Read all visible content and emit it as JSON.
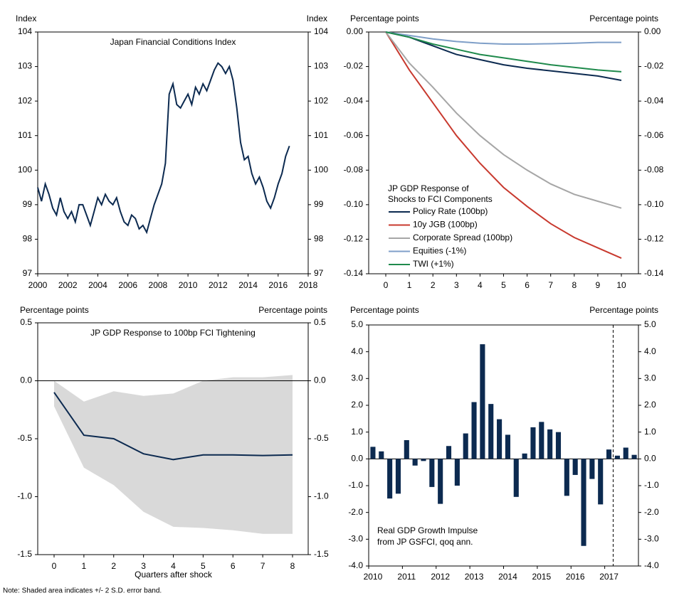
{
  "chart_data": [
    {
      "type": "line",
      "title": "Japan Financial Conditions Index",
      "ylabel_left": "Index",
      "ylabel_right": "Index",
      "x": [
        2000,
        2000.25,
        2000.5,
        2000.75,
        2001,
        2001.25,
        2001.5,
        2001.75,
        2002,
        2002.25,
        2002.5,
        2002.75,
        2003,
        2003.25,
        2003.5,
        2003.75,
        2004,
        2004.25,
        2004.5,
        2004.75,
        2005,
        2005.25,
        2005.5,
        2005.75,
        2006,
        2006.25,
        2006.5,
        2006.75,
        2007,
        2007.25,
        2007.5,
        2007.75,
        2008,
        2008.25,
        2008.5,
        2008.75,
        2009,
        2009.25,
        2009.5,
        2009.75,
        2010,
        2010.25,
        2010.5,
        2010.75,
        2011,
        2011.25,
        2011.5,
        2011.75,
        2012,
        2012.25,
        2012.5,
        2012.75,
        2013,
        2013.25,
        2013.5,
        2013.75,
        2014,
        2014.25,
        2014.5,
        2014.75,
        2015,
        2015.25,
        2015.5,
        2015.75,
        2016,
        2016.25,
        2016.5,
        2016.75
      ],
      "values": [
        99.5,
        99.1,
        99.6,
        99.3,
        98.9,
        98.7,
        99.2,
        98.8,
        98.6,
        98.8,
        98.5,
        99.0,
        99.0,
        98.7,
        98.4,
        98.8,
        99.2,
        99.0,
        99.3,
        99.1,
        99.0,
        99.2,
        98.8,
        98.5,
        98.4,
        98.7,
        98.6,
        98.3,
        98.4,
        98.2,
        98.6,
        99.0,
        99.3,
        99.6,
        100.2,
        102.2,
        102.5,
        101.9,
        101.8,
        102.0,
        102.2,
        101.9,
        102.4,
        102.2,
        102.5,
        102.3,
        102.6,
        102.9,
        103.1,
        103.0,
        102.8,
        103.0,
        102.6,
        101.8,
        100.8,
        100.3,
        100.4,
        99.9,
        99.6,
        99.8,
        99.5,
        99.1,
        98.9,
        99.2,
        99.6,
        99.9,
        100.4,
        100.7
      ],
      "color": "#0c2a50",
      "xlim": [
        2000,
        2018
      ],
      "xticks": [
        2000,
        2002,
        2004,
        2006,
        2008,
        2010,
        2012,
        2014,
        2016,
        2018
      ],
      "ylim": [
        97,
        104
      ],
      "yticks": [
        97,
        98,
        99,
        100,
        101,
        102,
        103,
        104
      ],
      "y2lim": [
        97,
        104
      ],
      "y2ticks": [
        97,
        98,
        99,
        100,
        101,
        102,
        103,
        104
      ]
    },
    {
      "type": "line",
      "ylabel_left": "Percentage points",
      "ylabel_right": "Percentage points",
      "legend_title": [
        "JP GDP Response of",
        "Shocks to FCI Components"
      ],
      "categories": [
        0,
        1,
        2,
        3,
        4,
        5,
        6,
        7,
        8,
        9,
        10
      ],
      "series": [
        {
          "name": "Policy Rate (100bp)",
          "color": "#0c2a50",
          "values": [
            0,
            -0.003,
            -0.008,
            -0.013,
            -0.016,
            -0.019,
            -0.021,
            -0.0225,
            -0.024,
            -0.0255,
            -0.028
          ]
        },
        {
          "name": "10y JGB (100bp)",
          "color": "#c8392e",
          "values": [
            0,
            -0.022,
            -0.041,
            -0.06,
            -0.076,
            -0.09,
            -0.101,
            -0.111,
            -0.119,
            -0.125,
            -0.131
          ]
        },
        {
          "name": "Corporate Spread (100bp)",
          "color": "#a6a6a6",
          "values": [
            0,
            -0.018,
            -0.032,
            -0.047,
            -0.06,
            -0.071,
            -0.08,
            -0.088,
            -0.094,
            -0.098,
            -0.102
          ]
        },
        {
          "name": "Equities (-1%)",
          "color": "#7f9fc8",
          "values": [
            0,
            -0.002,
            -0.004,
            -0.0055,
            -0.0065,
            -0.007,
            -0.007,
            -0.0068,
            -0.0065,
            -0.006,
            -0.006
          ]
        },
        {
          "name": "TWI (+1%)",
          "color": "#1f8a4c",
          "values": [
            0,
            -0.003,
            -0.007,
            -0.01,
            -0.013,
            -0.015,
            -0.017,
            -0.019,
            -0.0205,
            -0.022,
            -0.023
          ]
        }
      ],
      "ylim": [
        -0.14,
        0
      ],
      "yticks": [
        {
          "value": -0.14,
          "label": "-0.14"
        },
        {
          "value": -0.12,
          "label": "-0.12"
        },
        {
          "value": -0.1,
          "label": "-0.10"
        },
        {
          "value": -0.08,
          "label": "-0.08"
        },
        {
          "value": -0.06,
          "label": "-0.06"
        },
        {
          "value": -0.04,
          "label": "-0.04"
        },
        {
          "value": -0.02,
          "label": "-0.02"
        },
        {
          "value": 0,
          "label": "0.00"
        }
      ],
      "y2lim": [
        -0.14,
        0
      ],
      "y2ticks": [
        {
          "value": -0.14,
          "label": "-0.14"
        },
        {
          "value": -0.12,
          "label": "-0.12"
        },
        {
          "value": -0.1,
          "label": "-0.10"
        },
        {
          "value": -0.08,
          "label": "-0.08"
        },
        {
          "value": -0.06,
          "label": "-0.06"
        },
        {
          "value": -0.04,
          "label": "-0.04"
        },
        {
          "value": -0.02,
          "label": "-0.02"
        },
        {
          "value": 0,
          "label": "0.00"
        }
      ]
    },
    {
      "type": "line",
      "title": "JP GDP Response to 100bp FCI Tightening",
      "xlabel": "Quarters after shock",
      "ylabel_left": "Percentage points",
      "ylabel_right": "Percentage points",
      "categories": [
        0,
        1,
        2,
        3,
        4,
        5,
        6,
        7,
        8
      ],
      "values": [
        -0.1,
        -0.47,
        -0.5,
        -0.63,
        -0.68,
        -0.64,
        -0.64,
        -0.645,
        -0.64
      ],
      "band_upper": [
        0,
        -0.18,
        -0.09,
        -0.13,
        -0.11,
        0,
        0.03,
        0.03,
        0.05
      ],
      "band_lower": [
        -0.22,
        -0.75,
        -0.9,
        -1.13,
        -1.26,
        -1.27,
        -1.29,
        -1.32,
        -1.32
      ],
      "color": "#0c2a50",
      "band_color": "#d9d9d9",
      "ylim": [
        -1.5,
        0.5
      ],
      "yticks": [
        -1.5,
        {
          "value": -1,
          "label": "-1.0"
        },
        -0.5,
        {
          "value": 0,
          "label": "0.0"
        },
        0.5
      ],
      "y2lim": [
        -1.5,
        0.5
      ],
      "y2ticks": [
        -1.5,
        {
          "value": -1,
          "label": "-1.0"
        },
        -0.5,
        {
          "value": 0,
          "label": "0.0"
        },
        0.5
      ]
    },
    {
      "type": "bar",
      "annotation": [
        "Real GDP Growth Impulse",
        "from JP GSFCI, qoq ann."
      ],
      "ylabel_left": "Percentage points",
      "ylabel_right": "Percentage points",
      "categories": [
        "2010",
        null,
        null,
        null,
        "2011",
        null,
        null,
        null,
        "2012",
        null,
        null,
        null,
        "2013",
        null,
        null,
        null,
        "2014",
        null,
        null,
        null,
        "2015",
        null,
        null,
        null,
        "2016",
        null,
        null,
        null,
        "2017",
        null,
        null,
        null
      ],
      "values": [
        0.45,
        0.28,
        -1.48,
        -1.3,
        0.7,
        -0.25,
        -0.08,
        -1.05,
        -1.68,
        0.48,
        -1.0,
        0.95,
        2.12,
        4.28,
        2.05,
        1.48,
        0.9,
        -1.42,
        0.2,
        1.18,
        1.38,
        1.1,
        1.0,
        -1.38,
        -0.6,
        -3.25,
        -0.75,
        -1.7,
        0.35,
        0.12,
        0.42,
        0.15
      ],
      "color": "#0c2a50",
      "ylim": [
        -4,
        5
      ],
      "yticks": [
        {
          "value": -4,
          "label": "-4.0"
        },
        {
          "value": -3,
          "label": "-3.0"
        },
        {
          "value": -2,
          "label": "-2.0"
        },
        {
          "value": -1,
          "label": "-1.0"
        },
        {
          "value": 0,
          "label": "0.0"
        },
        {
          "value": 1,
          "label": "1.0"
        },
        {
          "value": 2,
          "label": "2.0"
        },
        {
          "value": 3,
          "label": "3.0"
        },
        {
          "value": 4,
          "label": "4.0"
        },
        {
          "value": 5,
          "label": "5.0"
        }
      ],
      "y2lim": [
        -4,
        5
      ],
      "y2ticks": [
        {
          "value": -4,
          "label": "-4.0"
        },
        {
          "value": -3,
          "label": "-3.0"
        },
        {
          "value": -2,
          "label": "-2.0"
        },
        {
          "value": -1,
          "label": "-1.0"
        },
        {
          "value": 0,
          "label": "0.0"
        },
        {
          "value": 1,
          "label": "1.0"
        },
        {
          "value": 2,
          "label": "2.0"
        },
        {
          "value": 3,
          "label": "3.0"
        },
        {
          "value": 4,
          "label": "4.0"
        },
        {
          "value": 5,
          "label": "5.0"
        }
      ]
    }
  ],
  "note": "Note: Shaded area indicates +/- 2 S.D. error band."
}
